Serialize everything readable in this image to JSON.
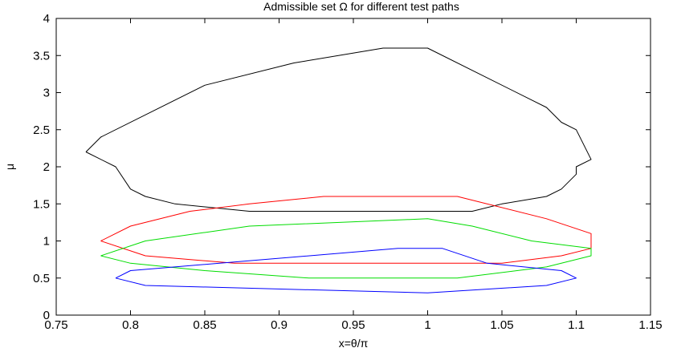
{
  "chart_data": {
    "type": "line",
    "title": "Admissible set Ω for different test paths",
    "xlabel": "x=θ/π",
    "ylabel": "μ",
    "xlim": [
      0.75,
      1.15
    ],
    "ylim": [
      0,
      4
    ],
    "xticks": [
      "0.75",
      "0.8",
      "0.85",
      "0.9",
      "0.95",
      "1",
      "1.05",
      "1.1",
      "1.15"
    ],
    "yticks": [
      "0",
      "0.5",
      "1",
      "1.5",
      "2",
      "2.5",
      "3",
      "3.5",
      "4"
    ],
    "grid": false,
    "legend": "none",
    "series": [
      {
        "color": "#000000",
        "points": [
          [
            0.77,
            2.2
          ],
          [
            0.78,
            2.4
          ],
          [
            0.85,
            3.1
          ],
          [
            0.91,
            3.4
          ],
          [
            0.97,
            3.6
          ],
          [
            1.0,
            3.6
          ],
          [
            1.08,
            2.8
          ],
          [
            1.09,
            2.6
          ],
          [
            1.1,
            2.5
          ],
          [
            1.11,
            2.1
          ],
          [
            1.1,
            2.0
          ],
          [
            1.1,
            1.9
          ],
          [
            1.09,
            1.7
          ],
          [
            1.08,
            1.6
          ],
          [
            1.05,
            1.5
          ],
          [
            1.03,
            1.4
          ],
          [
            0.88,
            1.4
          ],
          [
            0.83,
            1.5
          ],
          [
            0.81,
            1.6
          ],
          [
            0.8,
            1.7
          ],
          [
            0.79,
            2.0
          ],
          [
            0.77,
            2.2
          ]
        ]
      },
      {
        "color": "#ff0000",
        "points": [
          [
            0.78,
            1.0
          ],
          [
            0.8,
            1.2
          ],
          [
            0.84,
            1.4
          ],
          [
            0.88,
            1.5
          ],
          [
            0.93,
            1.6
          ],
          [
            1.02,
            1.6
          ],
          [
            1.08,
            1.3
          ],
          [
            1.11,
            1.1
          ],
          [
            1.11,
            1.0
          ],
          [
            1.11,
            0.9
          ],
          [
            1.09,
            0.8
          ],
          [
            1.05,
            0.7
          ],
          [
            0.87,
            0.7
          ],
          [
            0.81,
            0.8
          ],
          [
            0.78,
            1.0
          ]
        ]
      },
      {
        "color": "#00dd00",
        "points": [
          [
            0.78,
            0.8
          ],
          [
            0.81,
            1.0
          ],
          [
            0.88,
            1.2
          ],
          [
            1.0,
            1.3
          ],
          [
            1.03,
            1.2
          ],
          [
            1.07,
            1.0
          ],
          [
            1.11,
            0.9
          ],
          [
            1.11,
            0.8
          ],
          [
            1.1,
            0.75
          ],
          [
            1.08,
            0.65
          ],
          [
            1.02,
            0.5
          ],
          [
            0.92,
            0.5
          ],
          [
            0.85,
            0.6
          ],
          [
            0.8,
            0.7
          ],
          [
            0.78,
            0.8
          ]
        ]
      },
      {
        "color": "#0000ff",
        "points": [
          [
            0.79,
            0.5
          ],
          [
            0.8,
            0.6
          ],
          [
            0.98,
            0.9
          ],
          [
            1.01,
            0.9
          ],
          [
            1.04,
            0.7
          ],
          [
            1.09,
            0.6
          ],
          [
            1.1,
            0.5
          ],
          [
            1.08,
            0.4
          ],
          [
            1.0,
            0.3
          ],
          [
            0.81,
            0.4
          ],
          [
            0.79,
            0.5
          ]
        ]
      }
    ]
  }
}
